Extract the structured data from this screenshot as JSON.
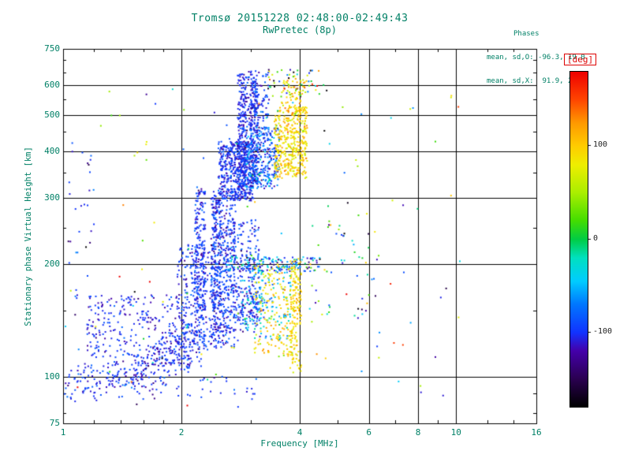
{
  "stats": {
    "header": "Phases",
    "line_o": "mean, sd,O: -96.3, 19.0",
    "line_x": "mean, sd,X:  91.9, 23.4",
    "O": {
      "mean": -96.3,
      "sd": 19.0
    },
    "X": {
      "mean": 91.9,
      "sd": 23.4
    }
  },
  "theme": {
    "text_color": "#008066",
    "grid_color": "#000000",
    "background": "#ffffff",
    "unit_label_color": "#dd0000"
  },
  "chart_data": {
    "type": "scatter",
    "title": "Tromsø 20151228 02:48:00-02:49:43",
    "subtitle": "RwPretec (8p)",
    "xlabel": "Frequency [MHz]",
    "ylabel": "Stationary phase Virtual Height [km]",
    "xscale": "log",
    "yscale": "log",
    "xlim": [
      1,
      16
    ],
    "ylim": [
      75,
      750
    ],
    "grid": true,
    "x_ticks": [
      {
        "value": 1,
        "label": "1"
      },
      {
        "value": 2,
        "label": "2"
      },
      {
        "value": 4,
        "label": "4"
      },
      {
        "value": 6,
        "label": "6"
      },
      {
        "value": 8,
        "label": "8"
      },
      {
        "value": 10,
        "label": "10"
      },
      {
        "value": 16,
        "label": "16"
      }
    ],
    "x_minor_ticks": [
      1.2,
      1.4,
      1.6,
      1.8,
      3,
      5,
      7,
      9,
      12,
      14
    ],
    "x_gridlines": [
      2,
      4,
      6,
      8,
      10
    ],
    "y_ticks": [
      {
        "value": 750,
        "label": "750"
      },
      {
        "value": 600,
        "label": "600"
      },
      {
        "value": 500,
        "label": "500"
      },
      {
        "value": 400,
        "label": "400"
      },
      {
        "value": 300,
        "label": "300"
      },
      {
        "value": 200,
        "label": "200"
      },
      {
        "value": 100,
        "label": "100"
      },
      {
        "value": 75,
        "label": "75"
      }
    ],
    "y_minor_ticks": [
      80,
      90,
      150,
      250,
      350,
      450,
      550,
      650,
      700
    ],
    "y_gridlines": [
      100,
      200,
      300,
      400,
      500,
      600
    ],
    "colorbar": {
      "unit": "[deg]",
      "lim": [
        -180,
        180
      ],
      "position": "right",
      "ticks": [
        {
          "value": 100,
          "label": "100"
        },
        {
          "value": 0,
          "label": "0"
        },
        {
          "value": -100,
          "label": "-100"
        }
      ],
      "stops": [
        [
          -180,
          "#000000"
        ],
        [
          -150,
          "#2a0050"
        ],
        [
          -120,
          "#4400aa"
        ],
        [
          -100,
          "#1133ff"
        ],
        [
          -70,
          "#0077ff"
        ],
        [
          -45,
          "#00ccff"
        ],
        [
          -20,
          "#00e0c0"
        ],
        [
          0,
          "#00cc44"
        ],
        [
          20,
          "#44dd00"
        ],
        [
          50,
          "#aaee00"
        ],
        [
          80,
          "#eeee00"
        ],
        [
          100,
          "#ffcc00"
        ],
        [
          125,
          "#ff9900"
        ],
        [
          150,
          "#ff4400"
        ],
        [
          180,
          "#ee0000"
        ]
      ]
    },
    "marker": "2px dot, colored by phase [deg]",
    "n_points_approx": 4700,
    "clusters": [
      {
        "name": "base-line-left",
        "shape": "line",
        "count": 160,
        "f0": 1.05,
        "h0": 96,
        "f1": 2.1,
        "h1": 110,
        "h_jitter": 5,
        "phase": [
          -100,
          12
        ]
      },
      {
        "name": "base-line-main",
        "shape": "line",
        "count": 260,
        "f0": 1.5,
        "h0": 103,
        "f1": 3.25,
        "h1": 152,
        "h_jitter": 7,
        "phase": [
          -102,
          14
        ]
      },
      {
        "name": "lower-left-blob",
        "shape": "blob",
        "count": 330,
        "f": [
          1.15,
          2.25
        ],
        "h": [
          106,
          165
        ],
        "phase": [
          -103,
          13
        ]
      },
      {
        "name": "lower-mid-blob",
        "shape": "blob",
        "count": 420,
        "f": [
          1.95,
          2.75
        ],
        "h": [
          118,
          225
        ],
        "phase": [
          -100,
          15
        ]
      },
      {
        "name": "streak-2p2MHz",
        "shape": "blob",
        "count": 190,
        "f": [
          2.16,
          2.3
        ],
        "h": [
          150,
          318
        ],
        "phase": [
          -100,
          13
        ]
      },
      {
        "name": "streak-2p45MHz",
        "shape": "blob",
        "count": 170,
        "f": [
          2.38,
          2.52
        ],
        "h": [
          150,
          300
        ],
        "phase": [
          -98,
          14
        ]
      },
      {
        "name": "mid-blob",
        "shape": "blob",
        "count": 280,
        "f": [
          2.5,
          3.15
        ],
        "h": [
          148,
          262
        ],
        "phase": [
          -96,
          16
        ]
      },
      {
        "name": "band-200km",
        "shape": "blob",
        "count": 150,
        "f": [
          2.6,
          4.55
        ],
        "h": [
          191,
          209
        ],
        "phase": [
          -75,
          45
        ]
      },
      {
        "name": "cyan-cloud-low",
        "shape": "blob",
        "count": 150,
        "f": [
          2.85,
          3.8
        ],
        "h": [
          125,
          200
        ],
        "phase": [
          -45,
          30
        ]
      },
      {
        "name": "yellow-cloud-low",
        "shape": "blob",
        "count": 170,
        "f": [
          3.05,
          3.9
        ],
        "h": [
          113,
          200
        ],
        "phase": [
          90,
          18
        ]
      },
      {
        "name": "yellow-streak-4MHz",
        "shape": "blob",
        "count": 150,
        "f": [
          3.78,
          4.04
        ],
        "h": [
          103,
          207
        ],
        "phase": [
          95,
          14
        ]
      },
      {
        "name": "right-sparse-low",
        "shape": "blob",
        "count": 55,
        "f": [
          4.2,
          6.4
        ],
        "h": [
          140,
          265
        ],
        "phase": [
          -20,
          90
        ]
      },
      {
        "name": "bottom-sparse",
        "shape": "blob",
        "count": 70,
        "f": [
          1.0,
          3.1
        ],
        "h": [
          87,
          100
        ],
        "phase": [
          -100,
          15
        ]
      },
      {
        "name": "arc-rise",
        "shape": "blob",
        "count": 110,
        "f": [
          2.4,
          2.78
        ],
        "h": [
          228,
          312
        ],
        "phase": [
          -100,
          14
        ]
      },
      {
        "name": "upper-main-blob",
        "shape": "blob",
        "count": 480,
        "f": [
          2.48,
          3.05
        ],
        "h": [
          295,
          425
        ],
        "phase": [
          -100,
          14
        ]
      },
      {
        "name": "upper-streak-2p85MHz",
        "shape": "blob",
        "count": 240,
        "f": [
          2.78,
          2.92
        ],
        "h": [
          300,
          645
        ],
        "phase": [
          -102,
          12
        ]
      },
      {
        "name": "upper-streak-3p05MHz",
        "shape": "blob",
        "count": 190,
        "f": [
          3.0,
          3.14
        ],
        "h": [
          330,
          630
        ],
        "phase": [
          -100,
          14
        ]
      },
      {
        "name": "upper-mid-blob",
        "shape": "blob",
        "count": 330,
        "f": [
          2.9,
          3.55
        ],
        "h": [
          318,
          465
        ],
        "phase": [
          -85,
          28
        ]
      },
      {
        "name": "upper-yellow-x-mode",
        "shape": "blob",
        "count": 420,
        "f": [
          3.45,
          4.18
        ],
        "h": [
          338,
          525
        ],
        "phase": [
          92,
          18
        ]
      },
      {
        "name": "upper-yellow-top",
        "shape": "blob",
        "count": 70,
        "f": [
          3.6,
          4.15
        ],
        "h": [
          500,
          625
        ],
        "phase": [
          90,
          25
        ]
      },
      {
        "name": "upper-blue-top",
        "shape": "blob",
        "count": 110,
        "f": [
          2.85,
          3.35
        ],
        "h": [
          465,
          655
        ],
        "phase": [
          -100,
          15
        ]
      },
      {
        "name": "top-sparse-mixed",
        "shape": "blob",
        "count": 55,
        "f": [
          3.3,
          4.5
        ],
        "h": [
          555,
          660
        ],
        "phase": [
          0,
          110
        ]
      },
      {
        "name": "left-column-sparse",
        "shape": "blob",
        "count": 28,
        "f": [
          1.03,
          1.2
        ],
        "h": [
          140,
          430
        ],
        "phase": [
          -100,
          20
        ]
      },
      {
        "name": "background-sparse",
        "shape": "blob",
        "count": 130,
        "f": [
          1.0,
          10.5
        ],
        "h": [
          80,
          620
        ],
        "phase": [
          -10,
          110
        ]
      },
      {
        "name": "outlier-10MHz-550km",
        "shape": "blob",
        "count": 3,
        "f": [
          9.2,
          10.2
        ],
        "h": [
          520,
          580
        ],
        "phase": [
          80,
          30
        ]
      }
    ]
  }
}
